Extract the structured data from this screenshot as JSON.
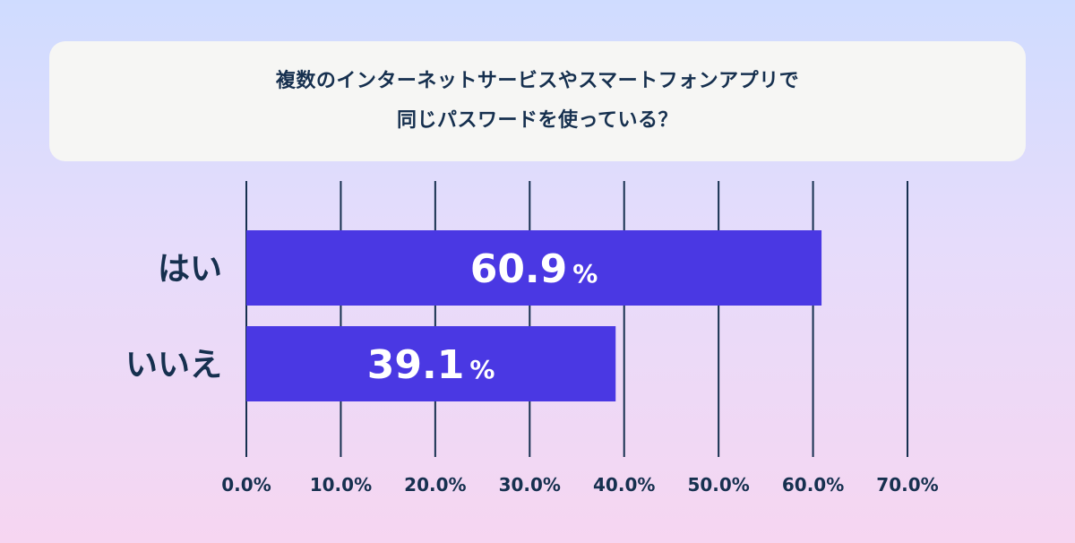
{
  "title": {
    "line1": "複数のインターネットサービスやスマートフォンアプリで",
    "line2": "同じパスワードを使っている？"
  },
  "colors": {
    "bar": "#4a38e3",
    "text": "#16304f",
    "gridline": "#16304f"
  },
  "chart_data": {
    "type": "bar",
    "orientation": "horizontal",
    "categories": [
      "はい",
      "いいえ"
    ],
    "values": [
      60.9,
      39.1
    ],
    "value_labels": [
      "60.9",
      "39.1"
    ],
    "value_unit": "%",
    "xlim": [
      0,
      70
    ],
    "x_ticks": [
      0,
      10,
      20,
      30,
      40,
      50,
      60,
      70
    ],
    "x_tick_labels": [
      "0.0%",
      "10.0%",
      "20.0%",
      "30.0%",
      "40.0%",
      "50.0%",
      "60.0%",
      "70.0%"
    ],
    "grid": true,
    "legend": "none"
  }
}
